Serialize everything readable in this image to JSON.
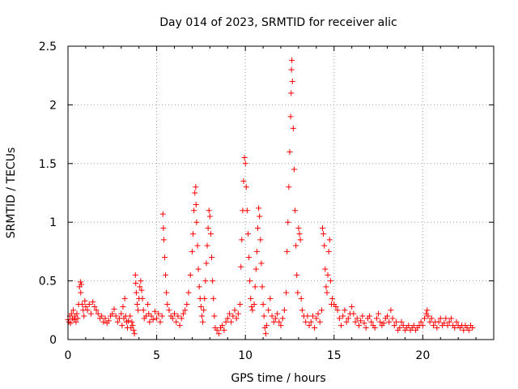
{
  "chart_data": {
    "type": "scatter",
    "title": "Day 014 of 2023, SRMTID for receiver alic",
    "xlabel": "GPS time / hours",
    "ylabel": "SRMTID / TECUs",
    "xlim": [
      0,
      24
    ],
    "ylim": [
      0,
      2.5
    ],
    "x_ticks": [
      0,
      5,
      10,
      15,
      20
    ],
    "x_tick_labels": [
      "0",
      "5",
      "10",
      "15",
      "20"
    ],
    "y_ticks": [
      0,
      0.5,
      1,
      1.5,
      2,
      2.5
    ],
    "y_tick_labels": [
      "0",
      "0.5",
      "1",
      "1.5",
      "2",
      "2.5"
    ],
    "grid": true,
    "marker": "+",
    "color": "#ff0000",
    "series": [
      {
        "name": "SRMTID",
        "points": [
          [
            0.0,
            0.17
          ],
          [
            0.05,
            0.15
          ],
          [
            0.1,
            0.2
          ],
          [
            0.15,
            0.14
          ],
          [
            0.2,
            0.22
          ],
          [
            0.25,
            0.18
          ],
          [
            0.3,
            0.25
          ],
          [
            0.35,
            0.17
          ],
          [
            0.4,
            0.2
          ],
          [
            0.45,
            0.15
          ],
          [
            0.5,
            0.22
          ],
          [
            0.55,
            0.18
          ],
          [
            0.6,
            0.3
          ],
          [
            0.65,
            0.45
          ],
          [
            0.7,
            0.49
          ],
          [
            0.72,
            0.4
          ],
          [
            0.75,
            0.47
          ],
          [
            0.8,
            0.3
          ],
          [
            0.85,
            0.25
          ],
          [
            0.9,
            0.2
          ],
          [
            0.95,
            0.33
          ],
          [
            1.0,
            0.28
          ],
          [
            1.1,
            0.25
          ],
          [
            1.2,
            0.3
          ],
          [
            1.3,
            0.22
          ],
          [
            1.4,
            0.32
          ],
          [
            1.5,
            0.28
          ],
          [
            1.6,
            0.25
          ],
          [
            1.7,
            0.22
          ],
          [
            1.8,
            0.18
          ],
          [
            1.9,
            0.2
          ],
          [
            2.0,
            0.15
          ],
          [
            2.1,
            0.18
          ],
          [
            2.2,
            0.14
          ],
          [
            2.3,
            0.16
          ],
          [
            2.4,
            0.2
          ],
          [
            2.5,
            0.22
          ],
          [
            2.6,
            0.26
          ],
          [
            2.7,
            0.2
          ],
          [
            2.8,
            0.15
          ],
          [
            2.9,
            0.18
          ],
          [
            3.0,
            0.22
          ],
          [
            3.05,
            0.12
          ],
          [
            3.1,
            0.28
          ],
          [
            3.15,
            0.18
          ],
          [
            3.2,
            0.35
          ],
          [
            3.25,
            0.2
          ],
          [
            3.3,
            0.15
          ],
          [
            3.35,
            0.1
          ],
          [
            3.4,
            0.16
          ],
          [
            3.5,
            0.2
          ],
          [
            3.55,
            0.1
          ],
          [
            3.6,
            0.15
          ],
          [
            3.65,
            0.12
          ],
          [
            3.7,
            0.08
          ],
          [
            3.75,
            0.05
          ],
          [
            3.8,
            0.55
          ],
          [
            3.82,
            0.48
          ],
          [
            3.85,
            0.4
          ],
          [
            3.9,
            0.3
          ],
          [
            3.95,
            0.25
          ],
          [
            4.0,
            0.35
          ],
          [
            4.05,
            0.45
          ],
          [
            4.1,
            0.5
          ],
          [
            4.15,
            0.42
          ],
          [
            4.2,
            0.35
          ],
          [
            4.25,
            0.25
          ],
          [
            4.3,
            0.18
          ],
          [
            4.4,
            0.2
          ],
          [
            4.5,
            0.3
          ],
          [
            4.55,
            0.22
          ],
          [
            4.6,
            0.15
          ],
          [
            4.7,
            0.2
          ],
          [
            4.8,
            0.17
          ],
          [
            4.9,
            0.24
          ],
          [
            5.0,
            0.18
          ],
          [
            5.1,
            0.22
          ],
          [
            5.2,
            0.15
          ],
          [
            5.3,
            0.2
          ],
          [
            5.35,
            1.07
          ],
          [
            5.38,
            0.95
          ],
          [
            5.4,
            0.85
          ],
          [
            5.45,
            0.7
          ],
          [
            5.5,
            0.55
          ],
          [
            5.55,
            0.4
          ],
          [
            5.6,
            0.3
          ],
          [
            5.7,
            0.25
          ],
          [
            5.8,
            0.2
          ],
          [
            5.9,
            0.18
          ],
          [
            6.0,
            0.22
          ],
          [
            6.1,
            0.15
          ],
          [
            6.2,
            0.2
          ],
          [
            6.3,
            0.12
          ],
          [
            6.4,
            0.18
          ],
          [
            6.5,
            0.22
          ],
          [
            6.6,
            0.25
          ],
          [
            6.7,
            0.3
          ],
          [
            6.8,
            0.4
          ],
          [
            6.9,
            0.55
          ],
          [
            7.0,
            0.75
          ],
          [
            7.05,
            0.9
          ],
          [
            7.1,
            1.1
          ],
          [
            7.15,
            1.25
          ],
          [
            7.2,
            1.3
          ],
          [
            7.22,
            1.15
          ],
          [
            7.25,
            1.0
          ],
          [
            7.3,
            0.8
          ],
          [
            7.35,
            0.6
          ],
          [
            7.4,
            0.45
          ],
          [
            7.45,
            0.35
          ],
          [
            7.5,
            0.28
          ],
          [
            7.55,
            0.2
          ],
          [
            7.6,
            0.15
          ],
          [
            7.65,
            0.25
          ],
          [
            7.7,
            0.35
          ],
          [
            7.75,
            0.5
          ],
          [
            7.8,
            0.65
          ],
          [
            7.85,
            0.8
          ],
          [
            7.9,
            0.95
          ],
          [
            7.95,
            1.1
          ],
          [
            8.0,
            1.05
          ],
          [
            8.05,
            0.9
          ],
          [
            8.1,
            0.7
          ],
          [
            8.15,
            0.5
          ],
          [
            8.2,
            0.35
          ],
          [
            8.25,
            0.2
          ],
          [
            8.3,
            0.1
          ],
          [
            8.4,
            0.08
          ],
          [
            8.5,
            0.05
          ],
          [
            8.6,
            0.1
          ],
          [
            8.7,
            0.12
          ],
          [
            8.8,
            0.08
          ],
          [
            8.9,
            0.15
          ],
          [
            9.0,
            0.18
          ],
          [
            9.1,
            0.22
          ],
          [
            9.2,
            0.15
          ],
          [
            9.3,
            0.2
          ],
          [
            9.4,
            0.25
          ],
          [
            9.5,
            0.18
          ],
          [
            9.6,
            0.22
          ],
          [
            9.7,
            0.3
          ],
          [
            9.75,
            0.62
          ],
          [
            9.8,
            0.85
          ],
          [
            9.85,
            1.1
          ],
          [
            9.9,
            1.35
          ],
          [
            9.95,
            1.55
          ],
          [
            10.0,
            1.5
          ],
          [
            10.05,
            1.3
          ],
          [
            10.1,
            1.1
          ],
          [
            10.15,
            0.9
          ],
          [
            10.2,
            0.7
          ],
          [
            10.25,
            0.5
          ],
          [
            10.3,
            0.35
          ],
          [
            10.35,
            0.28
          ],
          [
            10.4,
            0.25
          ],
          [
            10.5,
            0.3
          ],
          [
            10.55,
            0.45
          ],
          [
            10.6,
            0.6
          ],
          [
            10.65,
            0.75
          ],
          [
            10.7,
            0.95
          ],
          [
            10.75,
            1.12
          ],
          [
            10.8,
            1.05
          ],
          [
            10.85,
            0.85
          ],
          [
            10.9,
            0.65
          ],
          [
            10.95,
            0.45
          ],
          [
            11.0,
            0.3
          ],
          [
            11.05,
            0.2
          ],
          [
            11.1,
            0.1
          ],
          [
            11.15,
            0.05
          ],
          [
            11.2,
            0.12
          ],
          [
            11.3,
            0.25
          ],
          [
            11.4,
            0.35
          ],
          [
            11.5,
            0.2
          ],
          [
            11.6,
            0.15
          ],
          [
            11.7,
            0.18
          ],
          [
            11.8,
            0.22
          ],
          [
            11.9,
            0.15
          ],
          [
            12.0,
            0.12
          ],
          [
            12.1,
            0.18
          ],
          [
            12.2,
            0.25
          ],
          [
            12.3,
            0.4
          ],
          [
            12.35,
            0.75
          ],
          [
            12.4,
            1.0
          ],
          [
            12.45,
            1.3
          ],
          [
            12.5,
            1.6
          ],
          [
            12.55,
            1.9
          ],
          [
            12.58,
            2.1
          ],
          [
            12.6,
            2.3
          ],
          [
            12.62,
            2.38
          ],
          [
            12.65,
            2.2
          ],
          [
            12.7,
            1.8
          ],
          [
            12.75,
            1.45
          ],
          [
            12.8,
            1.1
          ],
          [
            12.85,
            0.8
          ],
          [
            12.9,
            0.55
          ],
          [
            12.95,
            0.4
          ],
          [
            13.0,
            0.95
          ],
          [
            13.05,
            0.9
          ],
          [
            13.1,
            0.85
          ],
          [
            13.15,
            0.35
          ],
          [
            13.2,
            0.25
          ],
          [
            13.3,
            0.2
          ],
          [
            13.4,
            0.15
          ],
          [
            13.5,
            0.2
          ],
          [
            13.6,
            0.12
          ],
          [
            13.7,
            0.15
          ],
          [
            13.8,
            0.2
          ],
          [
            13.9,
            0.1
          ],
          [
            14.0,
            0.18
          ],
          [
            14.1,
            0.22
          ],
          [
            14.2,
            0.15
          ],
          [
            14.3,
            0.25
          ],
          [
            14.35,
            0.95
          ],
          [
            14.4,
            0.9
          ],
          [
            14.45,
            0.8
          ],
          [
            14.5,
            0.6
          ],
          [
            14.55,
            0.45
          ],
          [
            14.6,
            0.4
          ],
          [
            14.65,
            0.55
          ],
          [
            14.7,
            0.75
          ],
          [
            14.75,
            0.85
          ],
          [
            14.8,
            0.5
          ],
          [
            14.85,
            0.3
          ],
          [
            14.9,
            0.35
          ],
          [
            15.0,
            0.3
          ],
          [
            15.1,
            0.28
          ],
          [
            15.2,
            0.25
          ],
          [
            15.3,
            0.18
          ],
          [
            15.4,
            0.12
          ],
          [
            15.5,
            0.2
          ],
          [
            15.6,
            0.25
          ],
          [
            15.7,
            0.15
          ],
          [
            15.8,
            0.18
          ],
          [
            15.9,
            0.22
          ],
          [
            16.0,
            0.28
          ],
          [
            16.1,
            0.22
          ],
          [
            16.2,
            0.15
          ],
          [
            16.3,
            0.18
          ],
          [
            16.4,
            0.12
          ],
          [
            16.5,
            0.16
          ],
          [
            16.6,
            0.2
          ],
          [
            16.7,
            0.14
          ],
          [
            16.8,
            0.1
          ],
          [
            16.9,
            0.18
          ],
          [
            17.0,
            0.2
          ],
          [
            17.1,
            0.15
          ],
          [
            17.2,
            0.12
          ],
          [
            17.3,
            0.1
          ],
          [
            17.4,
            0.18
          ],
          [
            17.5,
            0.22
          ],
          [
            17.6,
            0.15
          ],
          [
            17.7,
            0.12
          ],
          [
            17.8,
            0.14
          ],
          [
            17.9,
            0.18
          ],
          [
            18.0,
            0.2
          ],
          [
            18.1,
            0.15
          ],
          [
            18.2,
            0.25
          ],
          [
            18.3,
            0.18
          ],
          [
            18.4,
            0.12
          ],
          [
            18.5,
            0.15
          ],
          [
            18.6,
            0.08
          ],
          [
            18.7,
            0.1
          ],
          [
            18.8,
            0.15
          ],
          [
            18.9,
            0.12
          ],
          [
            19.0,
            0.08
          ],
          [
            19.1,
            0.1
          ],
          [
            19.2,
            0.12
          ],
          [
            19.3,
            0.08
          ],
          [
            19.4,
            0.1
          ],
          [
            19.5,
            0.12
          ],
          [
            19.6,
            0.08
          ],
          [
            19.7,
            0.1
          ],
          [
            19.8,
            0.12
          ],
          [
            19.9,
            0.15
          ],
          [
            20.0,
            0.12
          ],
          [
            20.1,
            0.18
          ],
          [
            20.2,
            0.22
          ],
          [
            20.25,
            0.25
          ],
          [
            20.3,
            0.2
          ],
          [
            20.4,
            0.15
          ],
          [
            20.5,
            0.18
          ],
          [
            20.6,
            0.12
          ],
          [
            20.7,
            0.15
          ],
          [
            20.8,
            0.1
          ],
          [
            20.9,
            0.15
          ],
          [
            21.0,
            0.18
          ],
          [
            21.1,
            0.12
          ],
          [
            21.2,
            0.14
          ],
          [
            21.3,
            0.18
          ],
          [
            21.4,
            0.12
          ],
          [
            21.5,
            0.15
          ],
          [
            21.6,
            0.18
          ],
          [
            21.7,
            0.12
          ],
          [
            21.8,
            0.1
          ],
          [
            21.9,
            0.15
          ],
          [
            22.0,
            0.12
          ],
          [
            22.1,
            0.1
          ],
          [
            22.2,
            0.12
          ],
          [
            22.3,
            0.08
          ],
          [
            22.4,
            0.12
          ],
          [
            22.5,
            0.1
          ],
          [
            22.6,
            0.08
          ],
          [
            22.7,
            0.12
          ],
          [
            22.8,
            0.1
          ]
        ]
      }
    ]
  }
}
